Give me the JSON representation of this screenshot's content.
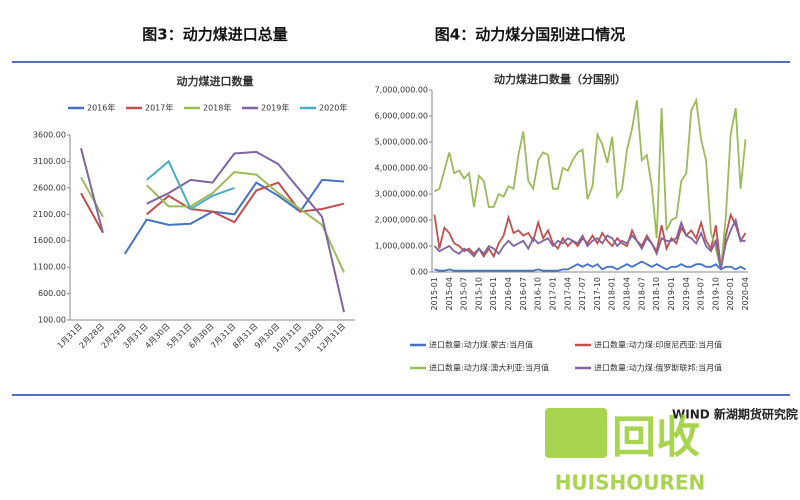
{
  "figure_titles": [
    "图3：动力煤进口总量",
    "图4：动力煤分国别进口情况"
  ],
  "source": "WIND 新湖期货研究院",
  "watermark": {
    "icon": "回收",
    "brand": "HUISHOUREN"
  },
  "chart_data": [
    {
      "type": "line",
      "title": "动力煤进口数量",
      "categories": [
        "1月31日",
        "2月28日",
        "2月29日",
        "3月31日",
        "4月30日",
        "5月31日",
        "6月30日",
        "7月31日",
        "8月31日",
        "9月30日",
        "10月31日",
        "11月30日",
        "12月31日"
      ],
      "ylim": [
        100,
        3600
      ],
      "yticks": [
        {
          "value": 100,
          "label": "100.00"
        },
        {
          "value": 600,
          "label": "600.00"
        },
        {
          "value": 1100,
          "label": "1100.00"
        },
        {
          "value": 1600,
          "label": "1600.00"
        },
        {
          "value": 2100,
          "label": "2100.00"
        },
        {
          "value": 2600,
          "label": "2600.00"
        },
        {
          "value": 3100,
          "label": "3100.00"
        },
        {
          "value": 3600,
          "label": "3600.00"
        }
      ],
      "legend": "top",
      "series": [
        {
          "name": "2016年",
          "color": "#4472c4",
          "values": [
            null,
            null,
            1350,
            2000,
            1900,
            1920,
            2150,
            2100,
            2700,
            2450,
            2150,
            2750,
            2720
          ]
        },
        {
          "name": "2017年",
          "color": "#c0504d",
          "values": [
            2500,
            1750,
            null,
            2100,
            2450,
            2200,
            2150,
            1950,
            2550,
            2700,
            2150,
            2200,
            2300
          ]
        },
        {
          "name": "2018年",
          "color": "#9bbb59",
          "values": [
            2800,
            2050,
            null,
            2650,
            2250,
            2250,
            2500,
            2900,
            2850,
            2500,
            2200,
            1900,
            1000
          ]
        },
        {
          "name": "2019年",
          "color": "#8064a2",
          "values": [
            3350,
            1750,
            null,
            2300,
            2500,
            2750,
            2700,
            3250,
            3280,
            3050,
            2550,
            2050,
            250
          ]
        },
        {
          "name": "2020年",
          "color": "#4bacc6",
          "values": [
            null,
            null,
            null,
            2750,
            3100,
            2200,
            2450,
            2600,
            null,
            null,
            null,
            null,
            null
          ]
        }
      ]
    },
    {
      "type": "line",
      "title": "动力煤进口数量（分国别）",
      "categories": [
        "2015-01",
        null,
        null,
        "2015-04",
        null,
        null,
        "2015-07",
        null,
        null,
        "2015-10",
        null,
        null,
        "2016-01",
        null,
        null,
        "2016-04",
        null,
        null,
        "2016-07",
        null,
        null,
        "2016-10",
        null,
        null,
        "2017-01",
        null,
        null,
        "2017-04",
        null,
        null,
        "2017-07",
        null,
        null,
        "2017-10",
        null,
        null,
        "2018-01",
        null,
        null,
        "2018-04",
        null,
        null,
        "2018-07",
        null,
        null,
        "2018-10",
        null,
        null,
        "2019-01",
        null,
        null,
        "2019-04",
        null,
        null,
        "2019-07",
        null,
        null,
        "2019-10",
        null,
        null,
        "2020-01",
        null,
        null,
        "2020-04"
      ],
      "ylim": [
        0,
        7000000
      ],
      "yticks": [
        {
          "value": 0,
          "label": "0.00"
        },
        {
          "value": 1000000,
          "label": "1,000,000.00"
        },
        {
          "value": 2000000,
          "label": "2,000,000.00"
        },
        {
          "value": 3000000,
          "label": "3,000,000.00"
        },
        {
          "value": 4000000,
          "label": "4,000,000.00"
        },
        {
          "value": 5000000,
          "label": "5,000,000.00"
        },
        {
          "value": 6000000,
          "label": "6,000,000.00"
        },
        {
          "value": 7000000,
          "label": "7,000,000.00"
        }
      ],
      "legend": "bottom",
      "series": [
        {
          "name": "进口数量:动力煤:蒙古:当月值",
          "color": "#4472c4",
          "values": [
            100000,
            50000,
            50000,
            100000,
            50000,
            50000,
            50000,
            50000,
            50000,
            50000,
            50000,
            50000,
            50000,
            50000,
            50000,
            50000,
            50000,
            50000,
            50000,
            50000,
            50000,
            100000,
            50000,
            50000,
            50000,
            50000,
            100000,
            100000,
            200000,
            300000,
            200000,
            300000,
            200000,
            300000,
            100000,
            200000,
            200000,
            100000,
            200000,
            300000,
            200000,
            300000,
            400000,
            300000,
            200000,
            300000,
            200000,
            100000,
            200000,
            200000,
            300000,
            200000,
            200000,
            300000,
            300000,
            200000,
            200000,
            300000,
            100000,
            200000,
            200000,
            100000,
            200000,
            100000
          ]
        },
        {
          "name": "进口数量:动力煤:印度尼西亚:当月值",
          "color": "#c0504d",
          "values": [
            2200000,
            900000,
            1700000,
            1500000,
            1100000,
            1000000,
            800000,
            900000,
            700000,
            900000,
            600000,
            900000,
            600000,
            1100000,
            1400000,
            2100000,
            1500000,
            1600000,
            1400000,
            1500000,
            1200000,
            1900000,
            1300000,
            1600000,
            1100000,
            900000,
            1300000,
            1000000,
            1200000,
            1000000,
            1300000,
            1100000,
            1400000,
            1100000,
            1500000,
            1200000,
            1000000,
            1300000,
            1100000,
            1000000,
            1600000,
            1200000,
            1000000,
            1400000,
            1100000,
            800000,
            1800000,
            900000,
            1300000,
            1100000,
            1700000,
            1400000,
            1600000,
            1300000,
            1900000,
            1200000,
            900000,
            1800000,
            200000,
            1400000,
            2200000,
            1800000,
            1200000,
            1500000
          ]
        },
        {
          "name": "进口数量:动力煤:澳大利亚:当月值",
          "color": "#9bbb59",
          "values": [
            3100000,
            3200000,
            3900000,
            4600000,
            3800000,
            3900000,
            3600000,
            3800000,
            2500000,
            3700000,
            3500000,
            2500000,
            2500000,
            3000000,
            2900000,
            3300000,
            3200000,
            4500000,
            5400000,
            3500000,
            3200000,
            4300000,
            4600000,
            4500000,
            3200000,
            3200000,
            4000000,
            3900000,
            4300000,
            4600000,
            4700000,
            2800000,
            3300000,
            5300000,
            4900000,
            4200000,
            5200000,
            2900000,
            3200000,
            4700000,
            5500000,
            6600000,
            4300000,
            4500000,
            3300000,
            1300000,
            6300000,
            1600000,
            2000000,
            2100000,
            3500000,
            3800000,
            6200000,
            6600000,
            5100000,
            4300000,
            1500000,
            900000,
            100000,
            2100000,
            5300000,
            6300000,
            3200000,
            5100000
          ]
        },
        {
          "name": "进口数量:动力煤:俄罗斯联邦:当月值",
          "color": "#8064a2",
          "values": [
            1000000,
            800000,
            900000,
            1000000,
            800000,
            700000,
            900000,
            800000,
            600000,
            900000,
            700000,
            1000000,
            900000,
            700000,
            1000000,
            1200000,
            1000000,
            1100000,
            1200000,
            900000,
            1300000,
            1100000,
            1200000,
            1300000,
            1000000,
            1200000,
            1100000,
            1300000,
            1200000,
            1100000,
            1400000,
            1000000,
            1200000,
            1300000,
            1100000,
            1400000,
            1300000,
            1000000,
            1200000,
            1100000,
            1400000,
            1200000,
            900000,
            1300000,
            1100000,
            700000,
            1300000,
            1200000,
            1200000,
            1300000,
            1900000,
            1400000,
            1300000,
            1100000,
            1500000,
            1000000,
            800000,
            1200000,
            100000,
            1100000,
            1600000,
            2000000,
            1200000,
            1200000
          ]
        }
      ]
    }
  ]
}
